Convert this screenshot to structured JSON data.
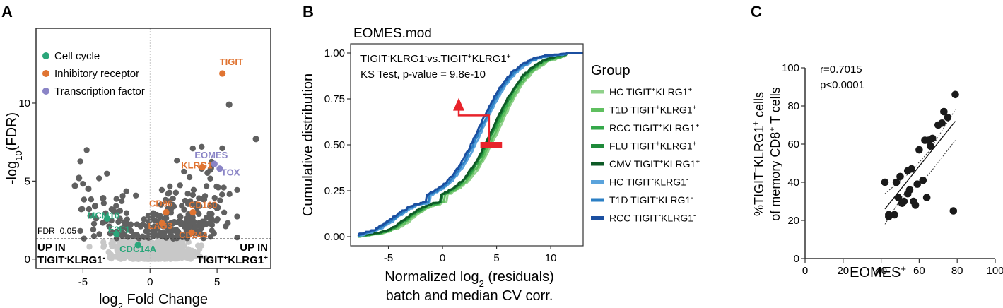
{
  "panels": {
    "a": "A",
    "b": "B",
    "c": "C"
  },
  "colors": {
    "grey_dark": "#606060",
    "grey_light": "#c8c8c8",
    "cell_cycle": "#2aa67a",
    "inhibitory": "#e07432",
    "transcription": "#8a84c6",
    "arrow": "#e8232b"
  },
  "chart_data": [
    {
      "type": "scatter",
      "panel": "A",
      "xlabel": {
        "main": "log",
        "sub": "2",
        "rest": " Fold Change"
      },
      "ylabel": {
        "pre": "-log",
        "sub": "10",
        "rest": "(FDR)"
      },
      "xlim": [
        -8.5,
        9
      ],
      "ylim": [
        -0.6,
        14.8
      ],
      "xticks": [
        -5,
        0,
        5
      ],
      "yticks": [
        0,
        5,
        10
      ],
      "threshold": {
        "y": 1.3,
        "label": "FDR=0.05"
      },
      "legend": [
        {
          "label": "Cell cycle",
          "color": "#2aa67a"
        },
        {
          "label": "Inhibitory receptor",
          "color": "#e07432"
        },
        {
          "label": "Transcription factor",
          "color": "#8a84c6"
        }
      ],
      "corner_labels": {
        "left_line1": "UP IN",
        "left_line2_pre": "TIGIT",
        "left_sup1": "-",
        "left_mid": "KLRG1",
        "left_sup2": "-",
        "right_line1": "UP IN",
        "right_line2_pre": "TIGIT",
        "right_sup1": "+",
        "right_mid": "KLRG1",
        "right_sup2": "+"
      },
      "highlighted": [
        {
          "label": "TIGIT",
          "x": 5.4,
          "y": 11.9,
          "group": "inhibitory"
        },
        {
          "label": "EOMES",
          "x": 4.8,
          "y": 6.1,
          "group": "transcription"
        },
        {
          "label": "TOX",
          "x": 5.2,
          "y": 5.8,
          "group": "transcription"
        },
        {
          "label": "KLRG1",
          "x": 3.9,
          "y": 5.9,
          "group": "inhibitory"
        },
        {
          "label": "CD96",
          "x": 1.2,
          "y": 3.0,
          "group": "inhibitory"
        },
        {
          "label": "CD160",
          "x": 3.2,
          "y": 3.0,
          "group": "inhibitory"
        },
        {
          "label": "LAG3",
          "x": 0.9,
          "y": 2.3,
          "group": "inhibitory"
        },
        {
          "label": "CD244",
          "x": 3.1,
          "y": 1.7,
          "group": "inhibitory"
        },
        {
          "label": "MCM10",
          "x": -3.2,
          "y": 2.6,
          "group": "cell_cycle"
        },
        {
          "label": "E2F1",
          "x": -2.5,
          "y": 1.6,
          "group": "cell_cycle"
        },
        {
          "label": "CDC14A",
          "x": -0.9,
          "y": 0.9,
          "group": "cell_cycle"
        }
      ],
      "extra_points": [
        [
          5.9,
          9.9
        ],
        [
          7.9,
          7.7
        ],
        [
          -5.3,
          5.2
        ],
        [
          -4.6,
          4.5
        ],
        [
          -5.6,
          4.7
        ],
        [
          -3.5,
          3.9
        ],
        [
          -4.1,
          3.4
        ]
      ]
    },
    {
      "type": "line",
      "panel": "B",
      "title": "EOMES.mod",
      "xlabel_line1": {
        "pre": "Normalized log",
        "sub": "2",
        "rest": " (residuals)"
      },
      "xlabel_line2": "batch and median CV corr.",
      "ylabel": "Cumulative distribution",
      "xlim": [
        -8.5,
        13
      ],
      "ylim": [
        0,
        1.0
      ],
      "xticks": [
        -5,
        0,
        5,
        10
      ],
      "yticks": [
        "0.00",
        "0.25",
        "0.50",
        "0.75",
        "1.00"
      ],
      "annotation": {
        "line1_a": "TIGIT",
        "sup_a": "-",
        "line1_b": "KLRG1",
        "sup_b": "-",
        "line1_c": "vs.TIGIT",
        "sup_c": "+",
        "line1_d": "KLRG1",
        "sup_d": "+",
        "line2": "KS  Test, p-value = 9.8e-10"
      },
      "legend_title": "Group",
      "series": [
        {
          "name": "HC TIGIT+KLRG1+",
          "base": "HC TIGIT",
          "s1": "+",
          "mid": "KLRG1",
          "s2": "+",
          "color": "#8fd18a",
          "shift": 0.4
        },
        {
          "name": "T1D TIGIT+KLRG1+",
          "base": "T1D TIGIT",
          "s1": "+",
          "mid": "KLRG1",
          "s2": "+",
          "color": "#5fbf5f",
          "shift": 0.2
        },
        {
          "name": "RCC TIGIT+KLRG1+",
          "base": "RCC TIGIT",
          "s1": "+",
          "mid": "KLRG1",
          "s2": "+",
          "color": "#34a84a",
          "shift": 0.0
        },
        {
          "name": "FLU TIGIT+KLRG1+",
          "base": "FLU TIGIT",
          "s1": "+",
          "mid": "KLRG1",
          "s2": "+",
          "color": "#1f8a3a",
          "shift": -0.1
        },
        {
          "name": "CMV TIGIT+KLRG1+",
          "base": "CMV TIGIT",
          "s1": "+",
          "mid": "KLRG1",
          "s2": "+",
          "color": "#0d5a26",
          "shift": -0.2
        },
        {
          "name": "HC TIGIT-KLRG1-",
          "base": "HC TIGIT",
          "s1": "-",
          "mid": "KLRG1",
          "s2": "-",
          "color": "#5aa3dc",
          "shift": -1.1
        },
        {
          "name": "T1D TIGIT-KLRG1-",
          "base": "T1D TIGIT",
          "s1": "-",
          "mid": "KLRG1",
          "s2": "-",
          "color": "#2b7fc4",
          "shift": -1.3
        },
        {
          "name": "RCC TIGIT-KLRG1-",
          "base": "RCC TIGIT",
          "s1": "-",
          "mid": "KLRG1",
          "s2": "-",
          "color": "#1b4fa0",
          "shift": -1.5
        }
      ],
      "median_marker": {
        "x": [
          3.5,
          5.5
        ],
        "y": 0.5
      },
      "arrow_tip": {
        "x": 1.5,
        "y": 0.74
      }
    },
    {
      "type": "scatter",
      "panel": "C",
      "xlabel": {
        "pre": "EOMES",
        "sup": "+"
      },
      "ylabel_line1": {
        "pre": "%TIGIT",
        "s1": "+",
        "mid": "KLRG1",
        "s2": "+",
        "rest": " cells"
      },
      "ylabel_line2": {
        "pre": "of memory CD8",
        "s1": "+",
        "rest": " T cells"
      },
      "xlim": [
        0,
        100
      ],
      "ylim": [
        0,
        100
      ],
      "xticks": [
        0,
        20,
        40,
        60,
        80,
        100
      ],
      "yticks": [
        0,
        20,
        40,
        60,
        80,
        100
      ],
      "stats": {
        "r": "r=0.7015",
        "p": "p<0.0001"
      },
      "points": [
        [
          42,
          40
        ],
        [
          44,
          23
        ],
        [
          44,
          22
        ],
        [
          47,
          23
        ],
        [
          48,
          40
        ],
        [
          49,
          32
        ],
        [
          50,
          43
        ],
        [
          51,
          29
        ],
        [
          52,
          30
        ],
        [
          54,
          46
        ],
        [
          54,
          34
        ],
        [
          55,
          36
        ],
        [
          56,
          47
        ],
        [
          57,
          30
        ],
        [
          58,
          28
        ],
        [
          59,
          39
        ],
        [
          60,
          57
        ],
        [
          62,
          41
        ],
        [
          63,
          62
        ],
        [
          64,
          32
        ],
        [
          65,
          62
        ],
        [
          66,
          59
        ],
        [
          67,
          63
        ],
        [
          70,
          70
        ],
        [
          72,
          71
        ],
        [
          73,
          77
        ],
        [
          75,
          74
        ],
        [
          78,
          25
        ],
        [
          79,
          86
        ]
      ],
      "fit": {
        "x": [
          42,
          79
        ],
        "y": [
          26,
          72
        ]
      },
      "ci_upper": [
        [
          42,
          34
        ],
        [
          55,
          45
        ],
        [
          65,
          56
        ],
        [
          79,
          78
        ]
      ],
      "ci_lower": [
        [
          42,
          18
        ],
        [
          52,
          34
        ],
        [
          65,
          44
        ],
        [
          79,
          62
        ]
      ]
    }
  ]
}
